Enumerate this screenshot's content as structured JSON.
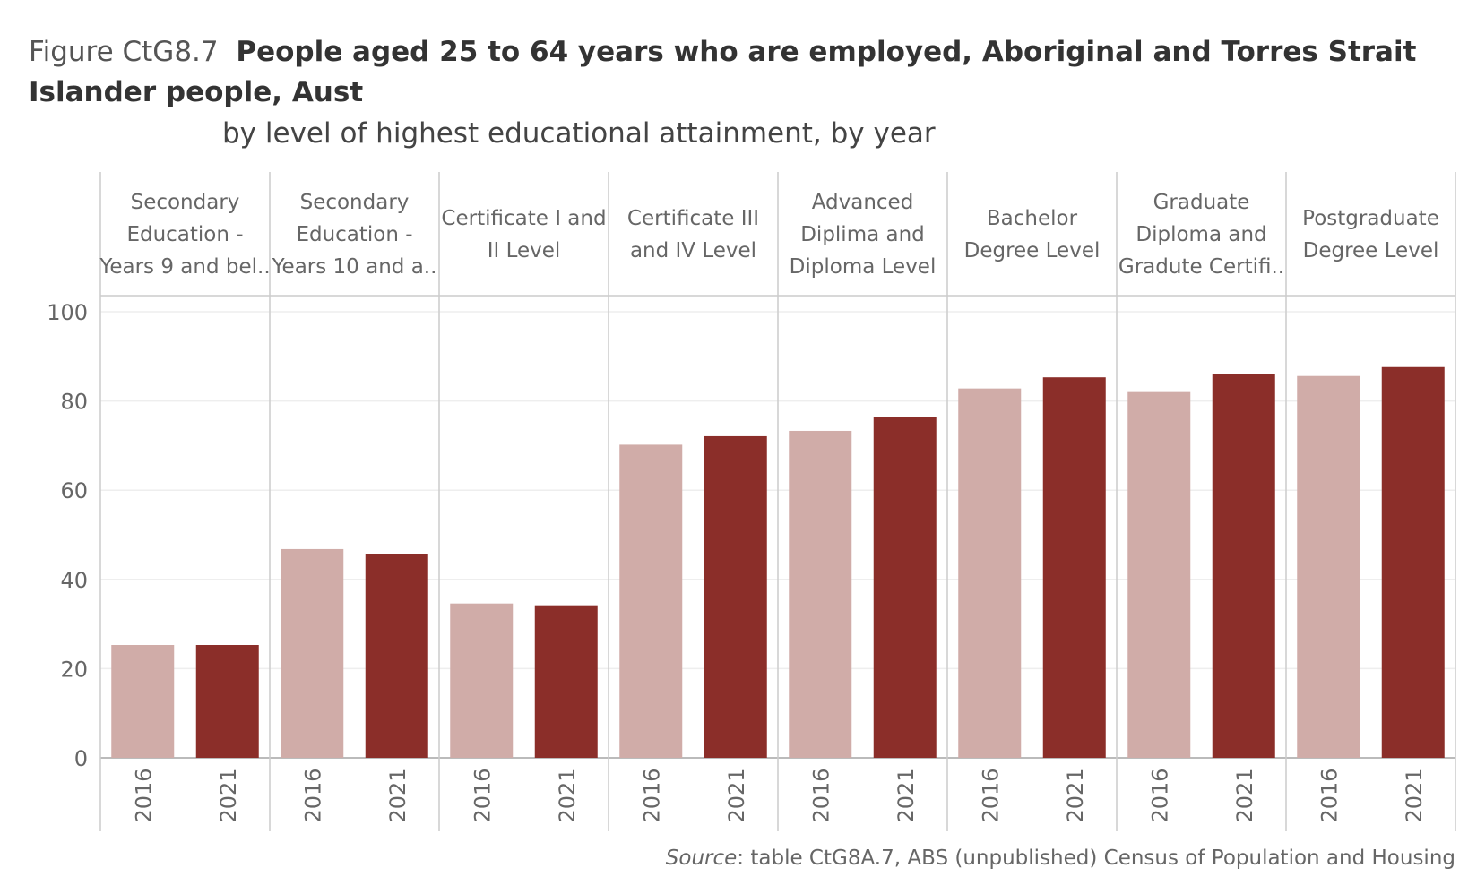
{
  "title_prefix": "Figure CtG8.7",
  "title": "People aged 25 to 64 years who are employed, Aboriginal and Torres Strait Islander people, Aust",
  "subtitle": "by level of highest educational attainment, by year",
  "source_label": "Source",
  "source_text": ": table CtG8A.7, ABS (unpublished) Census of Population and Housing",
  "colors": {
    "y2016": "#d0aca8",
    "y2021": "#8b2e29",
    "grid": "#eeeeee",
    "divider": "#cccccc"
  },
  "chart_data": {
    "type": "bar",
    "title": "People aged 25 to 64 years who are employed, Aboriginal and Torres Strait Islander people, Aust",
    "subtitle": "by level of highest educational attainment, by year",
    "categories": [
      [
        "Secondary",
        "Education -",
        "Years 9 and bel.."
      ],
      [
        "Secondary",
        "Education -",
        "Years 10 and a.."
      ],
      [
        "Certificate I and",
        "II Level"
      ],
      [
        "Certificate III",
        "and IV Level"
      ],
      [
        "Advanced",
        "Diplima and",
        "Diploma Level"
      ],
      [
        "Bachelor",
        "Degree Level"
      ],
      [
        "Graduate",
        "Diploma and",
        "Gradute Certifi.."
      ],
      [
        "Postgraduate",
        "Degree Level"
      ]
    ],
    "x_sub": [
      "2016",
      "2021"
    ],
    "series": [
      {
        "name": "2016",
        "values": [
          25.3,
          46.8,
          34.6,
          70.2,
          73.3,
          82.8,
          82.0,
          85.6
        ]
      },
      {
        "name": "2021",
        "values": [
          25.3,
          45.6,
          34.2,
          72.1,
          76.5,
          85.3,
          86.0,
          87.6
        ]
      }
    ],
    "y_ticks": [
      0,
      20,
      40,
      60,
      80,
      100
    ],
    "ylim": [
      0,
      100
    ],
    "grid": true
  }
}
